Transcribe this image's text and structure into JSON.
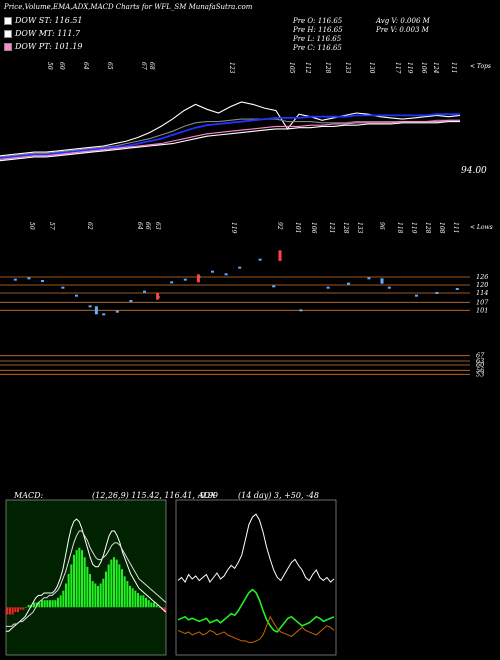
{
  "header": {
    "title": "Price,Volume,EMA,ADX,MACD Charts for WFL_SM MunafaSutra.com",
    "legend": [
      {
        "label": "DOW ST: 116.51",
        "color": "#ffffff"
      },
      {
        "label": "DOW MT: 111.7",
        "color": "#ffffff"
      },
      {
        "label": "DOW PT: 101.19",
        "color": "#ff88cc"
      }
    ],
    "stats_left": [
      "Pre O: 116.65",
      "Pre H: 116.65",
      "Pre L: 116.65",
      "Pre C: 116.65"
    ],
    "stats_right": [
      "Avg V: 0.006 M",
      "Pre V: 0.003 M"
    ]
  },
  "chart_data": [
    {
      "type": "line",
      "name": "price-ema",
      "top_labels": [
        "50",
        "60",
        "64",
        "65",
        "67",
        "68",
        "123",
        "105",
        "112",
        "128",
        "133",
        "130",
        "117",
        "119",
        "106",
        "124",
        "111"
      ],
      "corner_label": "< Tops",
      "price_label": "94.00",
      "ylim": [
        70,
        160
      ],
      "series": [
        {
          "color": "#ffffff",
          "values": [
            98,
            99,
            100,
            101,
            101,
            102,
            103,
            104,
            105,
            106,
            108,
            110,
            113,
            117,
            122,
            128,
            135,
            140,
            136,
            133,
            138,
            142,
            140,
            137,
            135,
            120,
            132,
            130,
            127,
            129,
            131,
            133,
            132,
            130,
            129,
            128,
            129,
            130,
            131,
            130,
            131
          ]
        },
        {
          "color": "#888888",
          "values": [
            97,
            98,
            99,
            100,
            100,
            101,
            102,
            103,
            104,
            105,
            106,
            108,
            110,
            112,
            115,
            118,
            122,
            125,
            126,
            126,
            127,
            128,
            128,
            128,
            128,
            126,
            126,
            126,
            125,
            125,
            125,
            126,
            126,
            126,
            126,
            126,
            126,
            126,
            127,
            127,
            127
          ]
        },
        {
          "color": "#2233ff",
          "values": [
            96,
            97,
            98,
            99,
            99,
            100,
            101,
            102,
            103,
            104,
            105,
            106,
            108,
            110,
            112,
            115,
            118,
            121,
            123,
            124,
            125,
            126,
            127,
            128,
            129,
            129,
            129,
            130,
            130,
            130,
            130,
            131,
            131,
            131,
            131,
            131,
            131,
            131,
            132,
            132,
            132
          ]
        },
        {
          "color": "#ff88cc",
          "values": [
            95,
            96,
            97,
            98,
            98,
            99,
            100,
            101,
            102,
            103,
            104,
            105,
            106,
            107,
            108,
            110,
            112,
            114,
            116,
            117,
            118,
            119,
            120,
            121,
            122,
            122,
            122,
            123,
            123,
            124,
            124,
            125,
            125,
            125,
            125,
            126,
            126,
            126,
            126,
            127,
            127
          ]
        },
        {
          "color": "#ffffff",
          "values": [
            94,
            95,
            96,
            97,
            97,
            98,
            99,
            100,
            101,
            102,
            103,
            104,
            105,
            106,
            107,
            108,
            110,
            112,
            114,
            115,
            116,
            117,
            118,
            119,
            120,
            120,
            121,
            121,
            122,
            122,
            123,
            123,
            124,
            124,
            124,
            125,
            125,
            125,
            125,
            126,
            126
          ]
        }
      ]
    },
    {
      "type": "scatter",
      "name": "supports",
      "top_labels": [
        "50",
        "57",
        "62",
        "64",
        "66",
        "63",
        "119",
        "92",
        "101",
        "106",
        "121",
        "128",
        "133",
        "96",
        "118",
        "119",
        "128",
        "108",
        "111"
      ],
      "corner_label": "< Lows",
      "levels": [
        "126",
        "120",
        "114",
        "107",
        "101",
        "67",
        "63",
        "60",
        "56",
        "53"
      ],
      "ylim": [
        45,
        150
      ],
      "points": [
        {
          "x": 1,
          "y": 124,
          "c": "#66aaff"
        },
        {
          "x": 3,
          "y": 125,
          "c": "#66aaff"
        },
        {
          "x": 5,
          "y": 123,
          "c": "#66aaff"
        },
        {
          "x": 8,
          "y": 118,
          "c": "#66aaff"
        },
        {
          "x": 10,
          "y": 112,
          "c": "#66aaff"
        },
        {
          "x": 12,
          "y": 104,
          "c": "#66aaff"
        },
        {
          "x": 14,
          "y": 98,
          "c": "#66aaff"
        },
        {
          "x": 16,
          "y": 100,
          "c": "#66aaff"
        },
        {
          "x": 18,
          "y": 108,
          "c": "#66aaff"
        },
        {
          "x": 20,
          "y": 115,
          "c": "#66aaff"
        },
        {
          "x": 22,
          "y": 111,
          "c": "#66aaff"
        },
        {
          "x": 24,
          "y": 122,
          "c": "#66aaff"
        },
        {
          "x": 26,
          "y": 124,
          "c": "#66aaff"
        },
        {
          "x": 28,
          "y": 126,
          "c": "#66aaff"
        },
        {
          "x": 30,
          "y": 130,
          "c": "#66aaff"
        },
        {
          "x": 32,
          "y": 128,
          "c": "#66aaff"
        },
        {
          "x": 34,
          "y": 133,
          "c": "#66aaff"
        },
        {
          "x": 37,
          "y": 139,
          "c": "#66aaff"
        },
        {
          "x": 39,
          "y": 119,
          "c": "#66aaff"
        },
        {
          "x": 43,
          "y": 101,
          "c": "#66aaff"
        },
        {
          "x": 47,
          "y": 118,
          "c": "#66aaff"
        },
        {
          "x": 50,
          "y": 121,
          "c": "#66aaff"
        },
        {
          "x": 53,
          "y": 125,
          "c": "#66aaff"
        },
        {
          "x": 56,
          "y": 118,
          "c": "#66aaff"
        },
        {
          "x": 60,
          "y": 112,
          "c": "#66aaff"
        },
        {
          "x": 63,
          "y": 114,
          "c": "#66aaff"
        },
        {
          "x": 66,
          "y": 117,
          "c": "#66aaff"
        }
      ],
      "candles": [
        {
          "x": 13,
          "lo": 98,
          "hi": 104,
          "c": "#66aaff"
        },
        {
          "x": 22,
          "lo": 109,
          "hi": 114,
          "c": "#ff4444"
        },
        {
          "x": 28,
          "lo": 122,
          "hi": 128,
          "c": "#ff4444"
        },
        {
          "x": 40,
          "lo": 138,
          "hi": 146,
          "c": "#ff4444"
        },
        {
          "x": 55,
          "lo": 121,
          "hi": 125,
          "c": "#66aaff"
        }
      ]
    },
    {
      "type": "bar",
      "name": "macd",
      "title": "MACD",
      "values": [
        -3,
        -3,
        -3,
        -2,
        -2,
        -1,
        -1,
        0,
        1,
        1,
        2,
        2,
        2,
        3,
        3,
        3,
        3,
        3,
        3,
        4,
        5,
        7,
        10,
        14,
        18,
        22,
        24,
        25,
        24,
        21,
        17,
        14,
        11,
        10,
        9,
        10,
        12,
        15,
        18,
        20,
        21,
        20,
        18,
        16,
        13,
        11,
        9,
        8,
        7,
        6,
        5,
        5,
        4,
        3,
        2,
        2,
        1,
        0,
        -1,
        -2
      ],
      "line1": [
        -10,
        -10,
        -9,
        -8,
        -7,
        -6,
        -5,
        -4,
        -2,
        0,
        2,
        4,
        5,
        5,
        6,
        6,
        6,
        6,
        7,
        9,
        12,
        16,
        22,
        28,
        33,
        36,
        37,
        36,
        33,
        29,
        25,
        21,
        18,
        17,
        17,
        19,
        22,
        26,
        30,
        32,
        32,
        30,
        27,
        23,
        20,
        17,
        14,
        12,
        10,
        8,
        7,
        6,
        5,
        4,
        3,
        2,
        1,
        0,
        -1,
        -2
      ],
      "line2": [
        -8,
        -8,
        -8,
        -7,
        -7,
        -6,
        -6,
        -5,
        -4,
        -3,
        -2,
        0,
        2,
        3,
        4,
        4,
        5,
        5,
        6,
        7,
        9,
        12,
        15,
        19,
        23,
        27,
        30,
        32,
        32,
        30,
        28,
        25,
        23,
        21,
        20,
        20,
        21,
        22,
        24,
        26,
        27,
        27,
        26,
        24,
        22,
        20,
        18,
        16,
        14,
        12,
        11,
        10,
        9,
        8,
        7,
        6,
        5,
        4,
        3,
        2
      ],
      "ylim": [
        -20,
        45
      ]
    },
    {
      "type": "line",
      "name": "adx",
      "label": "(14 day) 3, +50, -48",
      "ylim": [
        0,
        100
      ],
      "series": [
        {
          "color": "#ffffff",
          "values": [
            48,
            50,
            47,
            52,
            49,
            51,
            48,
            50,
            52,
            47,
            50,
            53,
            49,
            51,
            55,
            58,
            56,
            60,
            65,
            75,
            85,
            90,
            92,
            88,
            80,
            70,
            62,
            55,
            50,
            48,
            52,
            56,
            60,
            62,
            58,
            55,
            50,
            48,
            52,
            55,
            50,
            48,
            50,
            47,
            49
          ]
        },
        {
          "color": "#22ee22",
          "values": [
            22,
            23,
            24,
            22,
            23,
            22,
            21,
            22,
            23,
            20,
            21,
            22,
            20,
            22,
            24,
            26,
            25,
            28,
            32,
            36,
            40,
            42,
            40,
            35,
            28,
            22,
            18,
            15,
            14,
            17,
            20,
            23,
            24,
            22,
            20,
            18,
            19,
            20,
            22,
            24,
            23,
            21,
            22,
            23,
            24
          ]
        },
        {
          "color": "#cc6600",
          "values": [
            15,
            14,
            13,
            14,
            12,
            13,
            14,
            12,
            13,
            15,
            14,
            12,
            13,
            14,
            12,
            11,
            10,
            9,
            8,
            8,
            7,
            7,
            8,
            9,
            12,
            18,
            24,
            20,
            16,
            14,
            13,
            12,
            11,
            13,
            15,
            17,
            15,
            14,
            13,
            12,
            14,
            16,
            18,
            17,
            15
          ]
        }
      ]
    }
  ],
  "macd_label": "MACD:",
  "macd_values": "(12,26,9) 115.42, 116.41, -0.99",
  "adx_label": "ADX"
}
